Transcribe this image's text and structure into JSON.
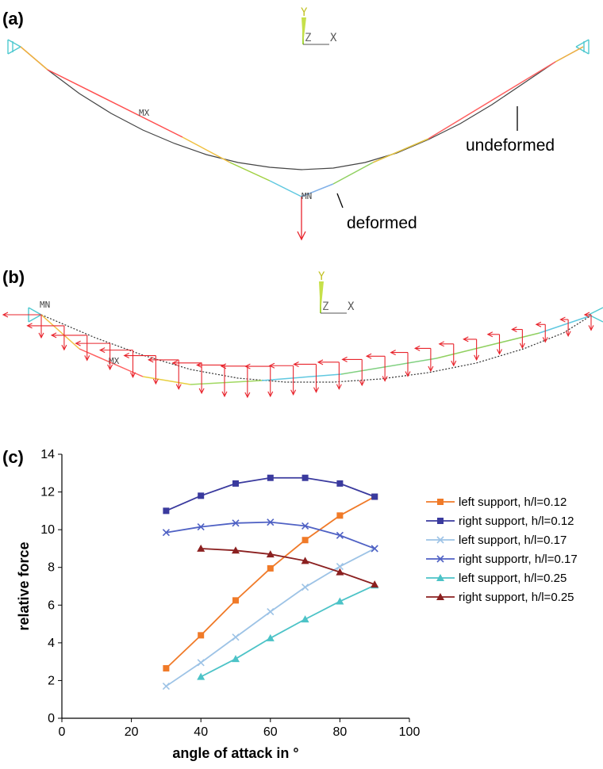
{
  "panels": {
    "a": {
      "label": "(a)",
      "triad": {
        "y": "Y",
        "z": "Z",
        "x": "X"
      },
      "mx_label": "MX",
      "mn_label": "MN",
      "undeformed_label": "undeformed",
      "deformed_label": "deformed"
    },
    "b": {
      "label": "(b)",
      "triad": {
        "y": "Y",
        "z": "Z",
        "x": "X"
      },
      "mn_label": "MN",
      "mx_label": "MX"
    },
    "c": {
      "label": "(c)"
    }
  },
  "colors": {
    "left_012": "#f07a28",
    "right_012": "#3a3a9e",
    "left_017": "#9dc3e6",
    "right_017": "#4f61c4",
    "left_025": "#4cc3c7",
    "right_025": "#8b2020",
    "force_arrows": "#e8242c",
    "support": "#4fc9d0"
  },
  "chart_data": {
    "type": "line",
    "xlabel": "angle of attack in °",
    "ylabel": "relative force",
    "xlim": [
      0,
      100
    ],
    "ylim": [
      0,
      14
    ],
    "xticks": [
      0,
      20,
      40,
      60,
      80,
      100
    ],
    "yticks": [
      0,
      2,
      4,
      6,
      8,
      10,
      12,
      14
    ],
    "grid": false,
    "legend_position": "right",
    "series": [
      {
        "name": "left support, h/l=0.12",
        "marker": "square",
        "color": "#f07a28",
        "x": [
          30,
          40,
          50,
          60,
          70,
          80,
          90
        ],
        "y": [
          2.65,
          4.4,
          6.25,
          7.95,
          9.45,
          10.75,
          11.75
        ]
      },
      {
        "name": "right support, h/l=0.12",
        "marker": "square",
        "color": "#3a3a9e",
        "x": [
          30,
          40,
          50,
          60,
          70,
          80,
          90
        ],
        "y": [
          11.0,
          11.8,
          12.45,
          12.75,
          12.75,
          12.45,
          11.75
        ]
      },
      {
        "name": "left support,  h/l=0.17",
        "marker": "x",
        "color": "#9dc3e6",
        "x": [
          30,
          40,
          50,
          60,
          70,
          80,
          90
        ],
        "y": [
          1.7,
          2.95,
          4.3,
          5.65,
          6.95,
          8.05,
          9.0
        ]
      },
      {
        "name": "right supportr,  h/l=0.17",
        "marker": "x",
        "color": "#4f61c4",
        "x": [
          30,
          40,
          50,
          60,
          70,
          80,
          90
        ],
        "y": [
          9.85,
          10.15,
          10.35,
          10.4,
          10.2,
          9.7,
          9.0
        ]
      },
      {
        "name": "left support,  h/l=0.25",
        "marker": "triangle",
        "color": "#4cc3c7",
        "x": [
          40,
          50,
          60,
          70,
          80,
          90
        ],
        "y": [
          2.2,
          3.15,
          4.25,
          5.25,
          6.2,
          7.05
        ]
      },
      {
        "name": "right support,  h/l=0.25",
        "marker": "triangle",
        "color": "#8b2020",
        "x": [
          40,
          50,
          60,
          70,
          80,
          90
        ],
        "y": [
          9.0,
          8.9,
          8.7,
          8.35,
          7.75,
          7.1
        ]
      }
    ]
  }
}
